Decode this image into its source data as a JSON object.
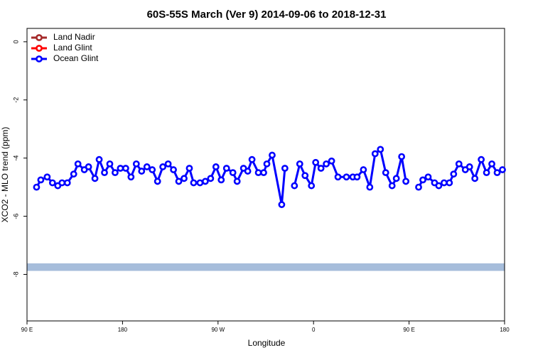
{
  "chart_data": {
    "type": "line",
    "title": "60S-55S March (Ver 9)   2014-09-06 to 2018-12-31",
    "xlabel": "Longitude",
    "ylabel": "XCO2 - MLO trend (ppm)",
    "xlim": [
      90,
      540
    ],
    "ylim": [
      -9.6,
      0.46
    ],
    "xticks": [
      {
        "value": 90,
        "label": "90 E"
      },
      180,
      {
        "value": 270,
        "label": "90 W"
      },
      {
        "value": 360,
        "label": "0"
      },
      {
        "value": 450,
        "label": "90 E"
      },
      {
        "value": 540,
        "label": "180"
      }
    ],
    "yticks": [
      0,
      -2,
      -4,
      -6,
      -8
    ],
    "band": {
      "ylim": [
        -7.88,
        -7.62
      ],
      "color": "#a6bddb"
    },
    "legend": "top-left",
    "x": [
      99,
      103,
      109,
      114,
      119,
      123,
      128,
      134,
      138,
      144,
      148,
      154,
      158,
      163,
      168,
      173,
      178,
      183,
      188,
      193,
      198,
      203,
      208,
      213,
      218,
      223,
      228,
      233,
      238,
      243,
      247,
      253,
      258,
      263,
      268,
      273,
      278,
      284,
      288,
      294,
      298,
      302,
      308,
      313,
      316,
      321,
      330,
      333,
      337,
      342,
      347,
      352,
      358,
      362,
      367,
      372,
      377,
      383,
      391,
      397,
      401,
      407,
      413,
      418,
      423,
      428,
      434,
      438,
      443,
      447,
      453,
      459,
      463,
      468,
      474,
      478,
      483,
      488,
      492,
      497,
      503,
      507,
      512,
      518,
      523,
      528,
      533,
      538
    ],
    "series": [
      {
        "name": "Land Nadir",
        "color": "#a52a2a"
      },
      {
        "name": "Land Glint",
        "color": "#ff0000"
      },
      {
        "name": "Ocean Glint",
        "color": "#0000ff",
        "values": [
          -5.0,
          -4.75,
          -4.65,
          -4.85,
          -4.95,
          -4.85,
          -4.85,
          -4.55,
          -4.2,
          -4.4,
          -4.3,
          -4.7,
          -4.05,
          -4.5,
          -4.2,
          -4.5,
          -4.35,
          -4.35,
          -4.65,
          -4.2,
          -4.45,
          -4.3,
          -4.4,
          -4.8,
          -4.3,
          -4.2,
          -4.4,
          -4.8,
          -4.7,
          -4.35,
          -4.85,
          -4.85,
          -4.8,
          -4.7,
          -4.3,
          -4.75,
          -4.35,
          -4.5,
          -4.8,
          -4.35,
          -4.45,
          -4.05,
          -4.5,
          -4.5,
          -4.2,
          -3.9,
          -5.6,
          -4.35,
          null,
          -4.95,
          -4.2,
          -4.6,
          -4.95,
          -4.15,
          -4.35,
          -4.2,
          -4.1,
          -4.65,
          -4.65,
          -4.65,
          -4.65,
          -4.4,
          -5.0,
          -3.85,
          -3.7,
          -4.5,
          -4.95,
          -4.7,
          -3.95,
          -4.8,
          null,
          -5.0,
          -4.75,
          -4.65,
          -4.85,
          -4.95,
          -4.85,
          -4.85,
          -4.55,
          -4.2,
          -4.4,
          -4.3,
          -4.7,
          -4.05,
          -4.5,
          -4.2,
          -4.5,
          -4.4
        ]
      }
    ]
  }
}
